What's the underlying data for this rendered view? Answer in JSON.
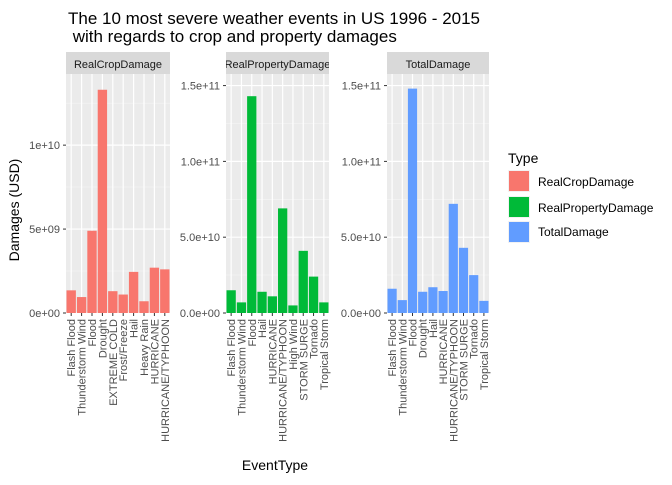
{
  "title_line1": "The 10 most severe weather events in US 1996 - 2015",
  "title_line2": " with regards to crop and property damages",
  "ylabel": "Damages (USD)",
  "xlabel": "EventType",
  "legend": {
    "title": "Type",
    "items": [
      {
        "label": "RealCropDamage",
        "color": "#F8766D"
      },
      {
        "label": "RealPropertyDamage",
        "color": "#00BA38"
      },
      {
        "label": "TotalDamage",
        "color": "#619CFF"
      }
    ]
  },
  "chart_data": [
    {
      "type": "bar",
      "panel": "RealCropDamage",
      "color": "#F8766D",
      "ylim": [
        0,
        14000000000
      ],
      "yticks": [
        {
          "value": 0,
          "label": "0e+00"
        },
        {
          "value": 5000000000,
          "label": "5e+09"
        },
        {
          "value": 10000000000,
          "label": "1e+10"
        }
      ],
      "categories": [
        "Flash Flood",
        "Thunderstorm Wind",
        "Flood",
        "Drought",
        "EXTREME COLD",
        "Frost/Freeze",
        "Hail",
        "Heavy Rain",
        "HURRICANE",
        "HURRICANE/TYPHOON"
      ],
      "values": [
        1350000000,
        950000000,
        4900000000,
        13300000000,
        1300000000,
        1100000000,
        2450000000,
        700000000,
        2700000000,
        2600000000
      ]
    },
    {
      "type": "bar",
      "panel": "RealPropertyDamage",
      "color": "#00BA38",
      "ylim": [
        0,
        155000000000
      ],
      "yticks": [
        {
          "value": 0,
          "label": "0.0e+00"
        },
        {
          "value": 50000000000,
          "label": "5.0e+10"
        },
        {
          "value": 100000000000,
          "label": "1.0e+11"
        },
        {
          "value": 150000000000,
          "label": "1.5e+11"
        }
      ],
      "categories": [
        "Flash Flood",
        "Thunderstorm Wind",
        "Flood",
        "Hail",
        "HURRICANE",
        "HURRICANE/TYPHOON",
        "High Wind",
        "STORM SURGE",
        "Tornado",
        "Tropical Storm"
      ],
      "values": [
        15000000000,
        7000000000,
        143000000000,
        14000000000,
        11000000000,
        69000000000,
        5000000000,
        41000000000,
        24000000000,
        7000000000
      ]
    },
    {
      "type": "bar",
      "panel": "TotalDamage",
      "color": "#619CFF",
      "ylim": [
        0,
        155000000000
      ],
      "yticks": [
        {
          "value": 0,
          "label": "0.0e+00"
        },
        {
          "value": 50000000000,
          "label": "5.0e+10"
        },
        {
          "value": 100000000000,
          "label": "1.0e+11"
        },
        {
          "value": 150000000000,
          "label": "1.5e+11"
        }
      ],
      "categories": [
        "Flash Flood",
        "Thunderstorm Wind",
        "Flood",
        "Drought",
        "Hail",
        "HURRICANE",
        "HURRICANE/TYPHOON",
        "STORM SURGE",
        "Tornado",
        "Tropical Storm"
      ],
      "values": [
        16000000000,
        8500000000,
        148000000000,
        14000000000,
        17000000000,
        14500000000,
        72000000000,
        43000000000,
        25000000000,
        8000000000
      ]
    }
  ]
}
